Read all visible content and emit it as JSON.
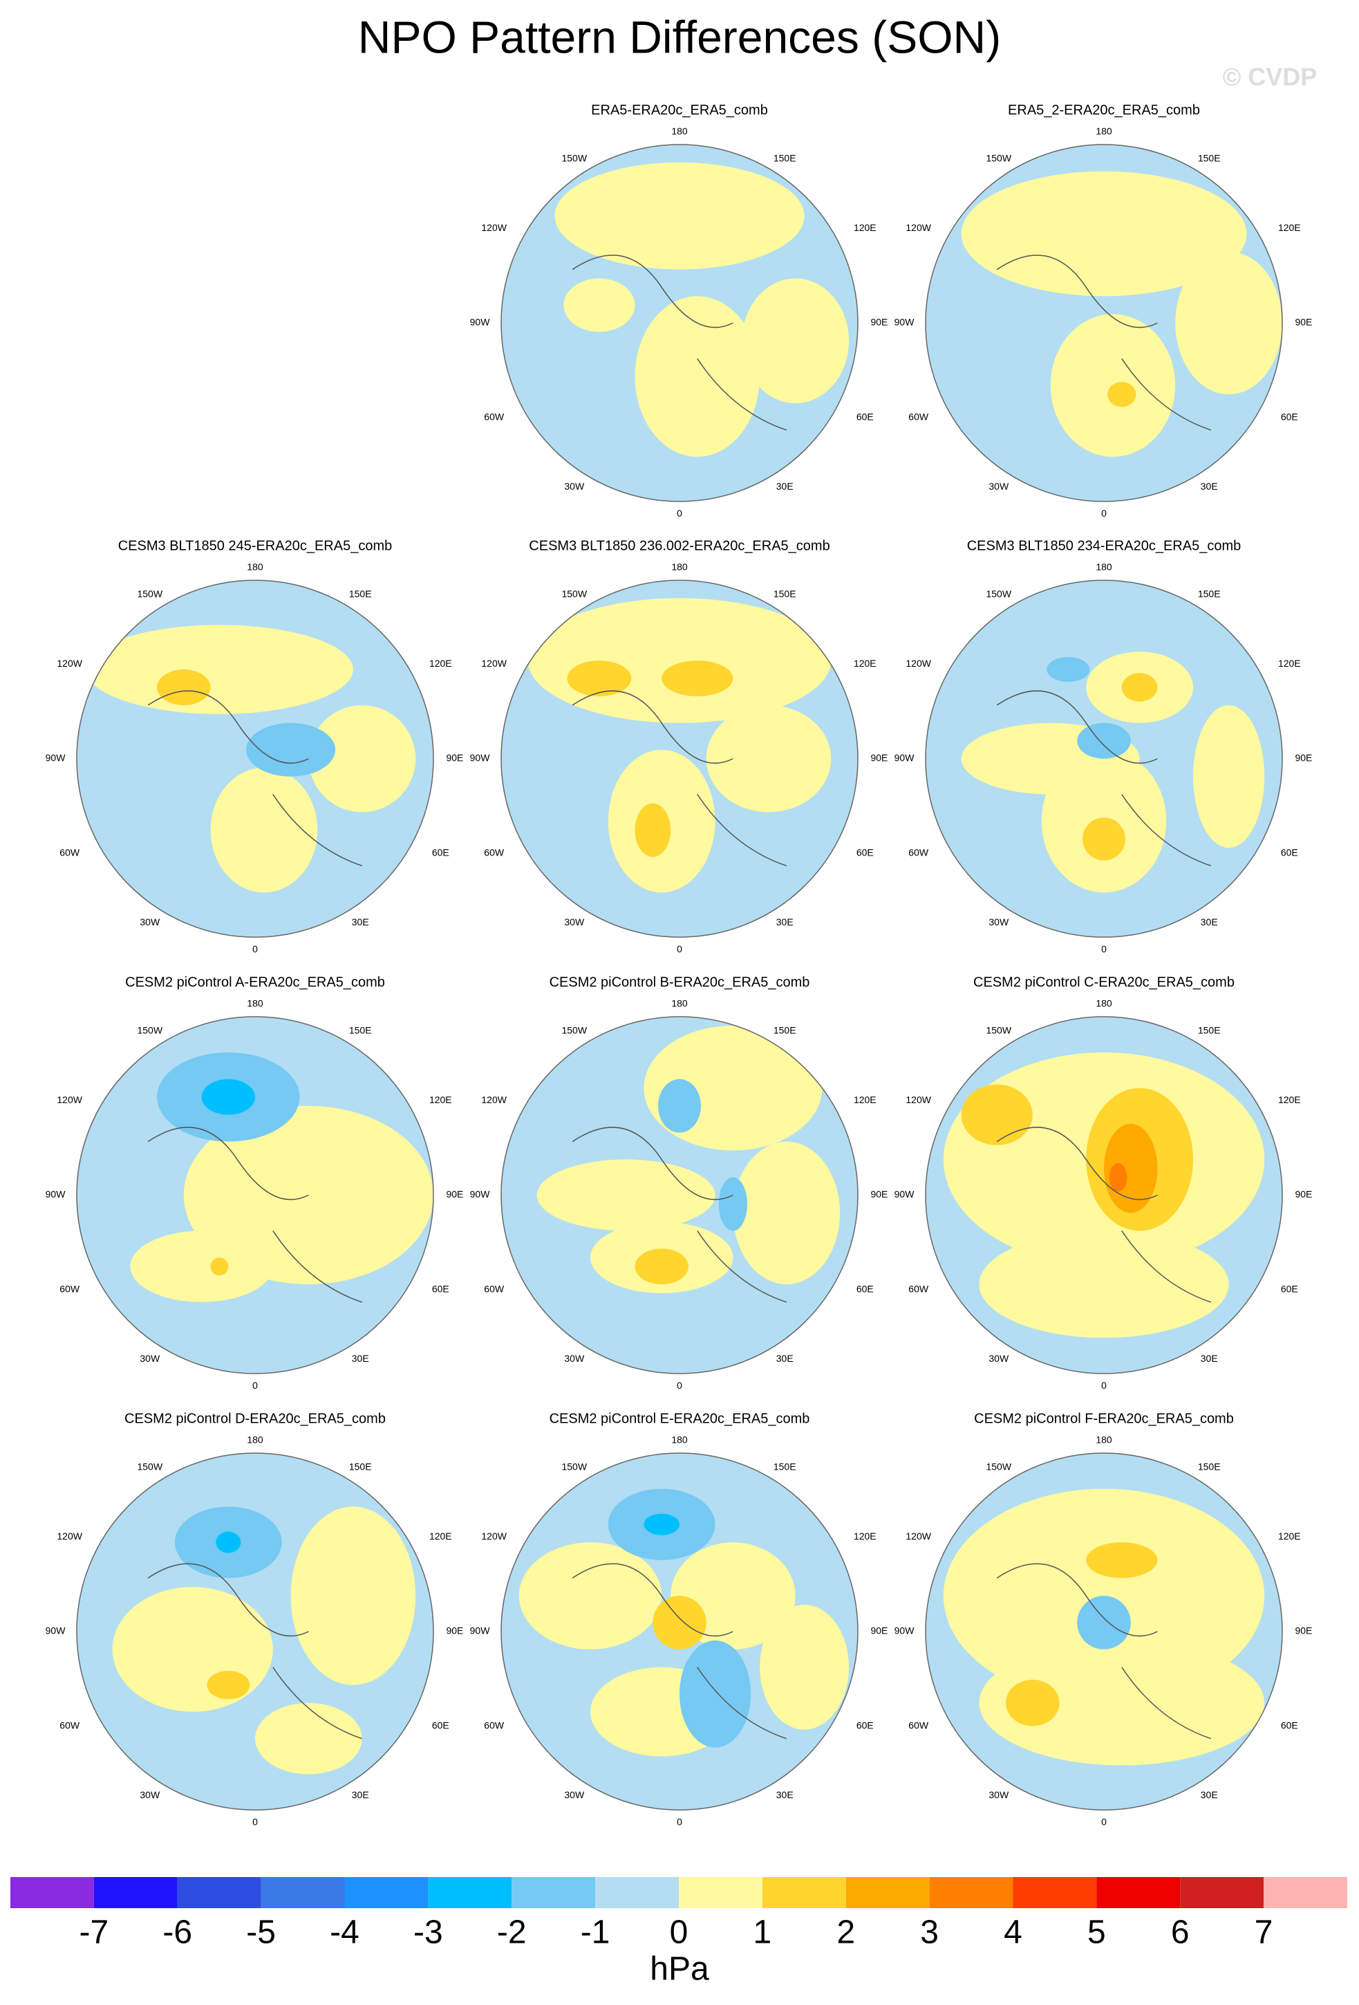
{
  "title": "NPO Pattern Differences (SON)",
  "watermark": "© CVDP",
  "panels": [
    {
      "title": "ERA5-ERA20c_ERA5_comb"
    },
    {
      "title": "ERA5_2-ERA20c_ERA5_comb"
    },
    {
      "title": "CESM3 BLT1850 245-ERA20c_ERA5_comb"
    },
    {
      "title": "CESM3 BLT1850 236.002-ERA20c_ERA5_comb"
    },
    {
      "title": "CESM3 BLT1850 234-ERA20c_ERA5_comb"
    },
    {
      "title": "CESM2 piControl A-ERA20c_ERA5_comb"
    },
    {
      "title": "CESM2 piControl B-ERA20c_ERA5_comb"
    },
    {
      "title": "CESM2 piControl C-ERA20c_ERA5_comb"
    },
    {
      "title": "CESM2 piControl D-ERA20c_ERA5_comb"
    },
    {
      "title": "CESM2 piControl E-ERA20c_ERA5_comb"
    },
    {
      "title": "CESM2 piControl F-ERA20c_ERA5_comb"
    }
  ],
  "longitude_labels": [
    "180",
    "150E",
    "120E",
    "90E",
    "60E",
    "30E",
    "0",
    "30W",
    "60W",
    "90W",
    "120W",
    "150W"
  ],
  "colorbar": {
    "colors": [
      "#8a2be2",
      "#1e14ff",
      "#2d4de0",
      "#3a78e6",
      "#1e90ff",
      "#00bfff",
      "#75c9f2",
      "#b3ddf2",
      "#fff9a0",
      "#ffd52e",
      "#ffaa00",
      "#ff7f00",
      "#ff3c00",
      "#ee0000",
      "#d02020",
      "#ffb3b3"
    ],
    "labels": [
      "-7",
      "-6",
      "-5",
      "-4",
      "-3",
      "-2",
      "-1",
      "0",
      "1",
      "2",
      "3",
      "4",
      "5",
      "6",
      "7"
    ]
  },
  "unit": "hPa"
}
